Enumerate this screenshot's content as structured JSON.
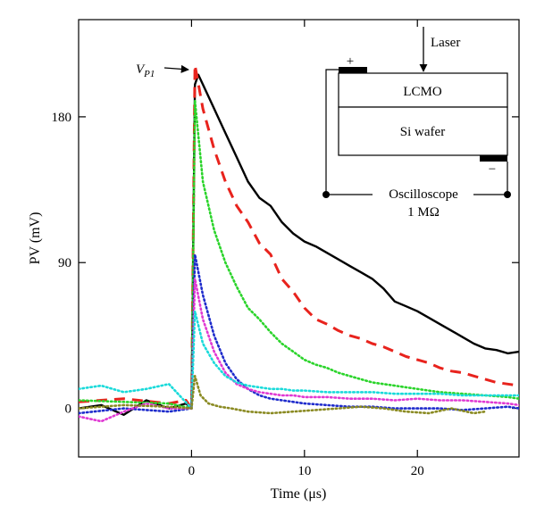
{
  "chart_data": {
    "type": "line",
    "xlabel": "Time (μs)",
    "ylabel": "PV (mV)",
    "xlim": [
      -10,
      29
    ],
    "ylim": [
      -30,
      240
    ],
    "x_ticks": [
      0,
      10,
      20
    ],
    "y_ticks": [
      0,
      90,
      180
    ],
    "grid": false,
    "annotation": {
      "label_main": "V",
      "label_sub": "P1",
      "x": 0,
      "y": 206
    },
    "inset": {
      "laser_label": "Laser",
      "top_layer_label": "LCMO",
      "bottom_layer_label": "Si wafer",
      "plus_label": "+",
      "minus_label": "−",
      "scope_label_line1": "Oscilloscope",
      "scope_label_line2": "1 MΩ"
    },
    "series": [
      {
        "color": "#000000",
        "style": "solid",
        "x": [
          -10,
          -8,
          -6,
          -4,
          -2,
          -0.5,
          0,
          0.3,
          0.6,
          1,
          2,
          3,
          4,
          5,
          6,
          7,
          8,
          9,
          10,
          11,
          12,
          13,
          14,
          15,
          16,
          17,
          18,
          19,
          20,
          21,
          22,
          23,
          24,
          25,
          26,
          27,
          28,
          29
        ],
        "y": [
          0,
          2,
          -4,
          5,
          0,
          3,
          0,
          200,
          206,
          200,
          185,
          170,
          155,
          140,
          130,
          125,
          115,
          108,
          103,
          100,
          96,
          92,
          88,
          84,
          80,
          74,
          66,
          63,
          60,
          56,
          52,
          48,
          44,
          40,
          37,
          36,
          34,
          35
        ]
      },
      {
        "color": "#e8231d",
        "style": "dash",
        "x": [
          -10,
          -6,
          -2,
          -0.5,
          0,
          0.3,
          1,
          2,
          3,
          4,
          5,
          6,
          7,
          8,
          9,
          10,
          11,
          12,
          13,
          14,
          15,
          16,
          17,
          18,
          19,
          20,
          21,
          22,
          23,
          24,
          25,
          26,
          27,
          28,
          29
        ],
        "y": [
          4,
          6,
          3,
          5,
          0,
          212,
          185,
          160,
          140,
          125,
          115,
          102,
          95,
          80,
          72,
          62,
          55,
          52,
          48,
          45,
          43,
          40,
          38,
          35,
          32,
          30,
          28,
          25,
          23,
          22,
          20,
          18,
          16,
          15,
          14
        ]
      },
      {
        "color": "#2bd42b",
        "style": "dot",
        "x": [
          -10,
          -6,
          -2,
          0,
          0.3,
          1,
          2,
          3,
          4,
          5,
          6,
          7,
          8,
          9,
          10,
          11,
          12,
          13,
          14,
          15,
          16,
          17,
          18,
          19,
          20,
          22,
          24,
          26,
          28,
          29
        ],
        "y": [
          5,
          4,
          3,
          0,
          190,
          140,
          110,
          90,
          75,
          62,
          55,
          47,
          40,
          35,
          30,
          27,
          25,
          22,
          20,
          18,
          16,
          15,
          14,
          13,
          12,
          10,
          9,
          8,
          7,
          6
        ]
      },
      {
        "color": "#1f2ccc",
        "style": "dot",
        "x": [
          -10,
          -6,
          -2,
          0,
          0.3,
          1,
          2,
          3,
          4,
          5,
          6,
          7,
          8,
          9,
          10,
          12,
          14,
          16,
          18,
          20,
          22,
          24,
          26,
          28,
          29
        ],
        "y": [
          -3,
          0,
          -2,
          0,
          95,
          70,
          45,
          28,
          18,
          12,
          8,
          6,
          5,
          4,
          3,
          2,
          1,
          1,
          0,
          0,
          0,
          -1,
          0,
          1,
          0
        ]
      },
      {
        "color": "#e03ad3",
        "style": "dot",
        "x": [
          -10,
          -8,
          -6,
          -4,
          -2,
          0,
          0.3,
          1,
          2,
          3,
          4,
          5,
          6,
          7,
          8,
          9,
          10,
          12,
          14,
          16,
          18,
          20,
          22,
          24,
          26,
          28,
          29
        ],
        "y": [
          -5,
          -8,
          -2,
          3,
          0,
          0,
          80,
          55,
          35,
          22,
          15,
          12,
          10,
          9,
          8,
          8,
          7,
          7,
          6,
          6,
          5,
          6,
          5,
          5,
          4,
          3,
          2
        ]
      },
      {
        "color": "#19dada",
        "style": "dot",
        "x": [
          -10,
          -8,
          -6,
          -4,
          -2,
          0,
          0.3,
          1,
          2,
          3,
          4,
          5,
          6,
          7,
          8,
          9,
          10,
          12,
          14,
          16,
          18,
          20,
          22,
          24,
          26,
          28,
          29
        ],
        "y": [
          12,
          14,
          10,
          12,
          15,
          0,
          60,
          40,
          28,
          20,
          16,
          14,
          13,
          12,
          12,
          11,
          11,
          10,
          10,
          10,
          9,
          9,
          9,
          8,
          8,
          8,
          8
        ]
      },
      {
        "color": "#8a8a22",
        "style": "dot",
        "x": [
          -10,
          -6,
          -2,
          0,
          0.3,
          0.8,
          1.5,
          2.5,
          3.5,
          5,
          7,
          9,
          11,
          13,
          15,
          17,
          19,
          21,
          23,
          25,
          26
        ],
        "y": [
          0,
          2,
          1,
          0,
          20,
          8,
          3,
          1,
          0,
          -2,
          -3,
          -2,
          -1,
          0,
          1,
          0,
          -2,
          -3,
          0,
          -3,
          -2
        ]
      }
    ]
  }
}
